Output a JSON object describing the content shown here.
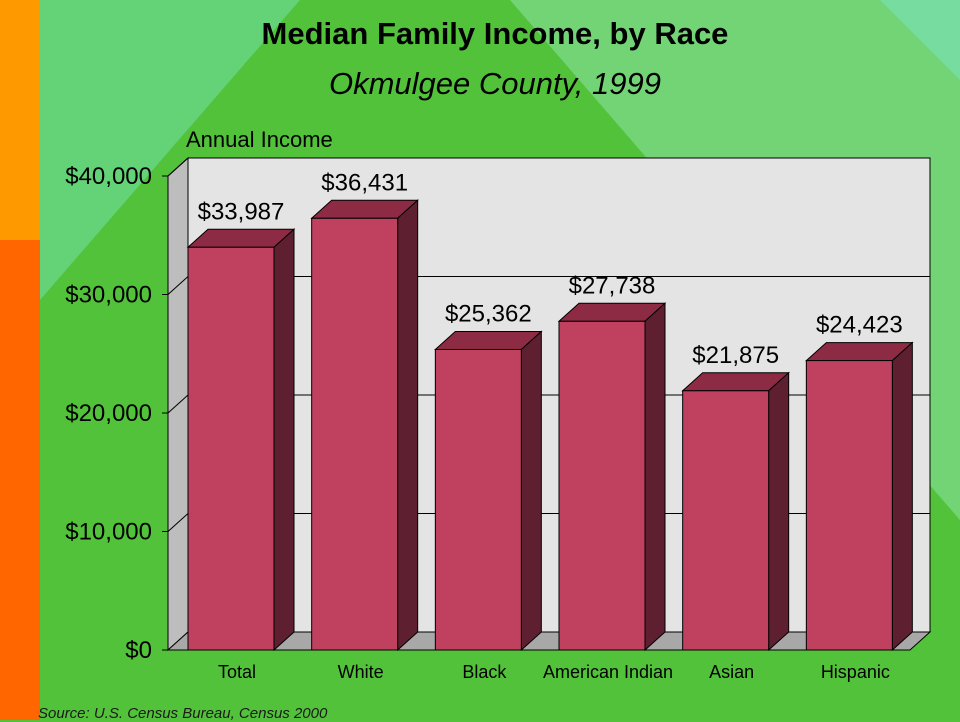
{
  "colors": {
    "background": "#52c23a",
    "stripe_top": "#ff9900",
    "stripe_bottom": "#ff6600",
    "bar_front": "#c04060",
    "bar_top": "#8e2b44",
    "bar_side": "#5e2031",
    "plot_back": "#e4e4e4"
  },
  "slide": {
    "title": "Median Family Income, by Race",
    "subtitle": "Okmulgee County, 1999",
    "source": "Source:  U.S. Census Bureau, Census 2000"
  },
  "chart_data": {
    "type": "bar",
    "title": "Median Family Income, by Race",
    "subtitle": "Okmulgee County, 1999",
    "ylabel": "Annual Income",
    "xlabel": "",
    "ylim": [
      0,
      40000
    ],
    "yticks": [
      0,
      10000,
      20000,
      30000,
      40000
    ],
    "ytick_labels": [
      "$0",
      "$10,000",
      "$20,000",
      "$30,000",
      "$40,000"
    ],
    "categories": [
      "Total",
      "White",
      "Black",
      "American Indian",
      "Asian",
      "Hispanic"
    ],
    "values": [
      33987,
      36431,
      25362,
      27738,
      21875,
      24423
    ],
    "data_labels": [
      "$33,987",
      "$36,431",
      "$25,362",
      "$27,738",
      "$21,875",
      "$24,423"
    ],
    "grid": true,
    "legend": "none"
  }
}
